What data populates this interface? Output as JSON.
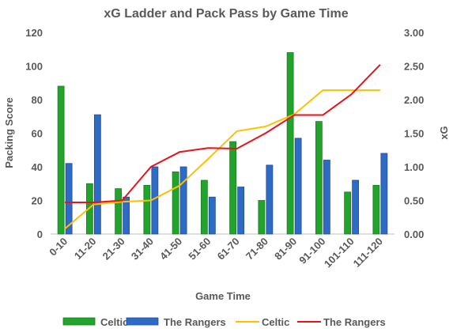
{
  "chart_data": {
    "type": "bar",
    "title": "xG Ladder and Pack Pass by Game Time",
    "xlabel": "Game Time",
    "ylabel": "Packing Score",
    "y2label": "xG",
    "ylim": [
      0,
      120
    ],
    "y2lim": [
      0,
      3.0
    ],
    "yticks": [
      "0",
      "20",
      "40",
      "60",
      "80",
      "100",
      "120"
    ],
    "y2ticks": [
      "0.00",
      "0.50",
      "1.00",
      "1.50",
      "2.00",
      "2.50",
      "3.00"
    ],
    "categories": [
      "0-10",
      "11-20",
      "21-30",
      "31-40",
      "41-50",
      "51-60",
      "61-70",
      "71-80",
      "81-90",
      "91-100",
      "101-110",
      "111-120"
    ],
    "bar_series": [
      {
        "name": "Celtic",
        "color": "#22A32B",
        "values": [
          88,
          30,
          27,
          29,
          37,
          32,
          55,
          20,
          108,
          67,
          25,
          29
        ]
      },
      {
        "name": "The Rangers",
        "color": "#2E6BC4",
        "values": [
          42,
          71,
          22,
          40,
          40,
          22,
          28,
          41,
          57,
          44,
          32,
          48
        ]
      }
    ],
    "line_series": [
      {
        "name": "Celtic",
        "color": "#FFC000",
        "axis": "right",
        "values": [
          0.08,
          0.44,
          0.48,
          0.5,
          0.72,
          1.12,
          1.53,
          1.6,
          1.78,
          2.14,
          2.14,
          2.14
        ]
      },
      {
        "name": "The Rangers",
        "color": "#E8121A",
        "axis": "right",
        "values": [
          0.47,
          0.47,
          0.5,
          1.0,
          1.22,
          1.28,
          1.27,
          1.5,
          1.77,
          1.77,
          2.08,
          2.52
        ]
      }
    ],
    "grid": false,
    "legend": "bottom"
  }
}
